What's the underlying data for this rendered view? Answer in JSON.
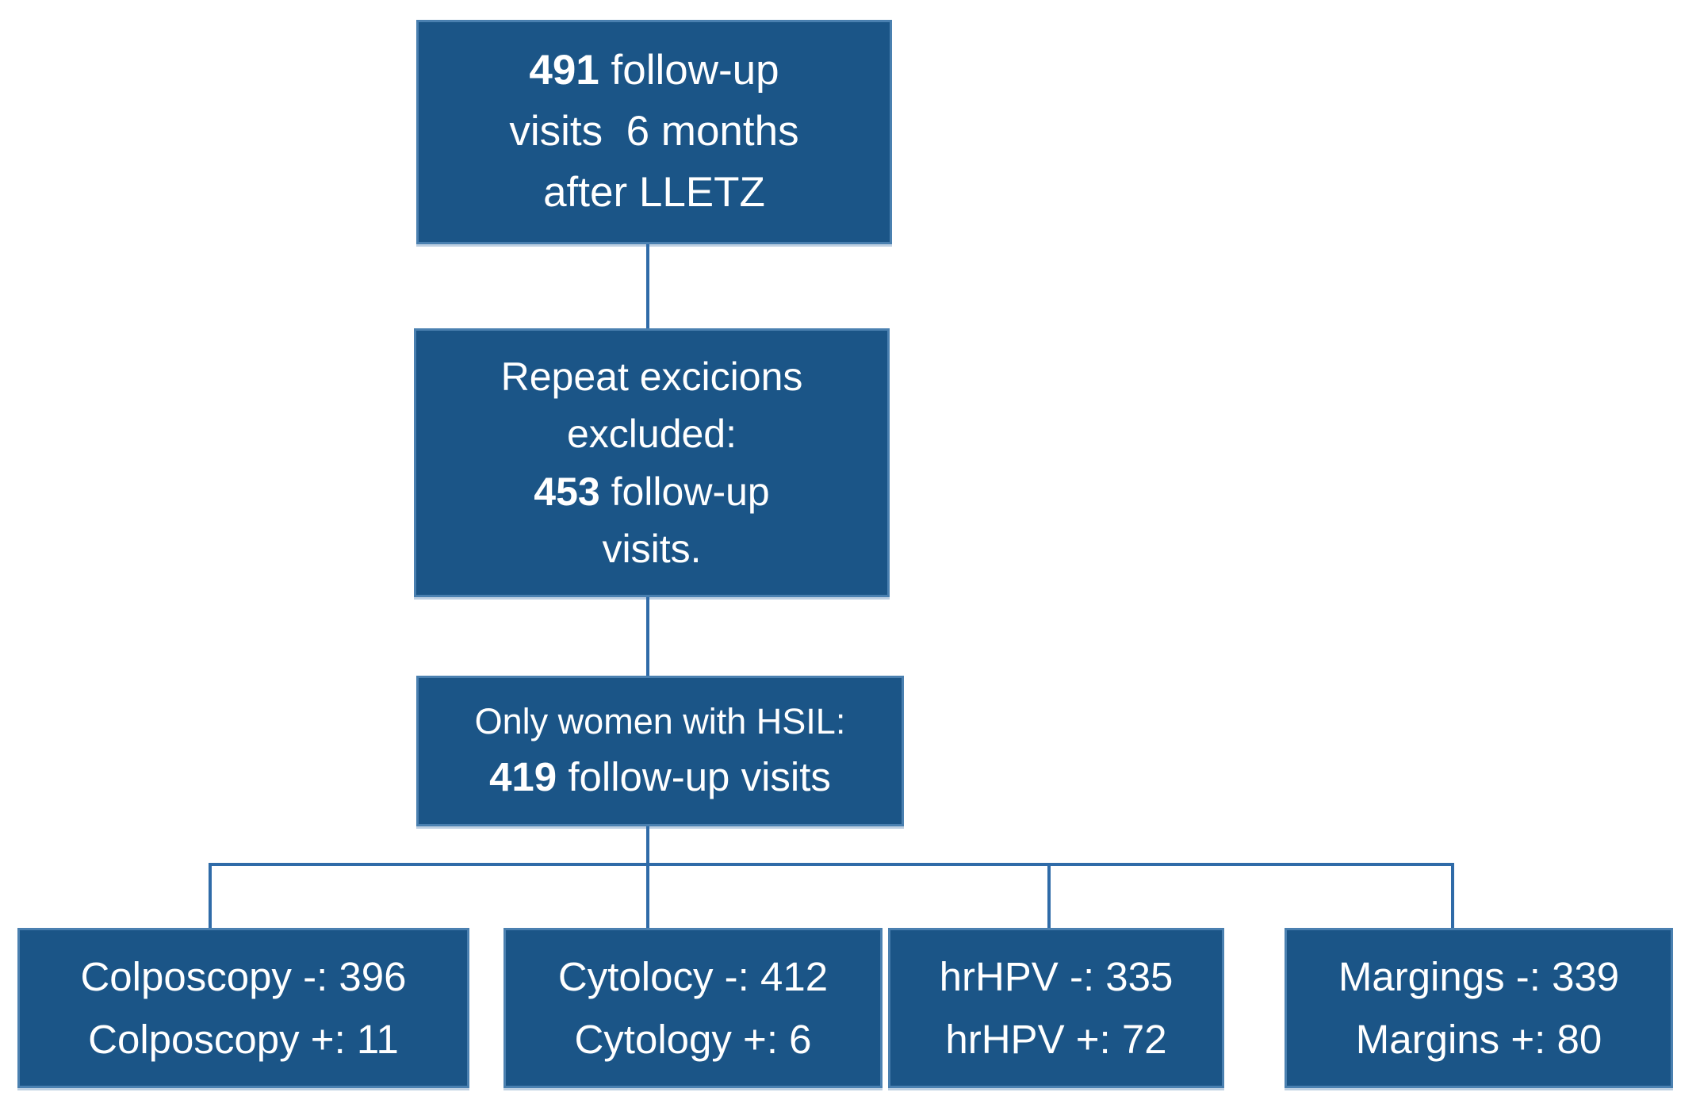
{
  "diagram": {
    "type": "flowchart",
    "colors": {
      "box_fill": "#1B5587",
      "box_border": "#4A80B0",
      "connector": "#2F6BA8",
      "text": "#FFFFFF",
      "background": "#FFFFFF"
    },
    "boxes": {
      "visits_491": {
        "num": "491",
        "line1_rest": " follow-up",
        "line2": "visits  6 months",
        "line3": "after LLETZ"
      },
      "excluded_453": {
        "line1": "Repeat excicions",
        "line2": "excluded:",
        "num": "453",
        "line3_rest": " follow-up",
        "line4": "visits."
      },
      "hsil_419": {
        "line1": "Only women with HSIL:",
        "num": "419",
        "line2_rest": " follow-up visits"
      },
      "colposcopy": {
        "line1": "Colposcopy -: 396",
        "line2": "Colposcopy +: 11"
      },
      "cytology": {
        "line1": "Cytolocy -: 412",
        "line2": "Cytology +: 6"
      },
      "hrhpv": {
        "line1": "hrHPV -: 335",
        "line2": "hrHPV +: 72"
      },
      "margins": {
        "line1": "Margings -: 339",
        "line2": "Margins +: 80"
      }
    }
  }
}
